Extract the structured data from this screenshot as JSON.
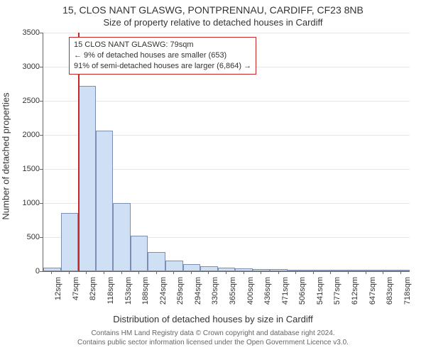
{
  "header": {
    "title_line1": "15, CLOS NANT GLASWG, PONTPRENNAU, CARDIFF, CF23 8NB",
    "title_line2": "Size of property relative to detached houses in Cardiff"
  },
  "axes": {
    "ylabel": "Number of detached properties",
    "xlabel": "Distribution of detached houses by size in Cardiff",
    "ylim": [
      0,
      3500
    ],
    "ytick_step": 500,
    "ytick_labels": [
      "0",
      "500",
      "1000",
      "1500",
      "2000",
      "2500",
      "3000",
      "3500"
    ],
    "label_fontsize": 13,
    "tick_fontsize": 11
  },
  "chart": {
    "type": "histogram",
    "background_color": "#ffffff",
    "grid_color": "#e6e6e6",
    "axis_color": "#666666",
    "bar_fill": "#cfe0f5",
    "bar_border": "#7a8fb3",
    "bar_width_ratio": 1.0,
    "bins": [
      {
        "label": "12sqm",
        "value": 55
      },
      {
        "label": "47sqm",
        "value": 850
      },
      {
        "label": "82sqm",
        "value": 2720
      },
      {
        "label": "118sqm",
        "value": 2060
      },
      {
        "label": "153sqm",
        "value": 1000
      },
      {
        "label": "188sqm",
        "value": 520
      },
      {
        "label": "224sqm",
        "value": 280
      },
      {
        "label": "259sqm",
        "value": 160
      },
      {
        "label": "294sqm",
        "value": 100
      },
      {
        "label": "330sqm",
        "value": 70
      },
      {
        "label": "365sqm",
        "value": 55
      },
      {
        "label": "400sqm",
        "value": 40
      },
      {
        "label": "436sqm",
        "value": 35
      },
      {
        "label": "471sqm",
        "value": 32
      },
      {
        "label": "506sqm",
        "value": 10
      },
      {
        "label": "541sqm",
        "value": 8
      },
      {
        "label": "577sqm",
        "value": 6
      },
      {
        "label": "612sqm",
        "value": 5
      },
      {
        "label": "647sqm",
        "value": 4
      },
      {
        "label": "683sqm",
        "value": 3
      },
      {
        "label": "718sqm",
        "value": 3
      }
    ]
  },
  "marker": {
    "position_ratio": 0.095,
    "color": "#c62828"
  },
  "callout": {
    "line1": "15 CLOS NANT GLASWG: 79sqm",
    "line2": "← 9% of detached houses are smaller (653)",
    "line3": "91% of semi-detached houses are larger (6,864) →",
    "border_color": "#c62828",
    "background_color": "#ffffff",
    "fontsize": 11
  },
  "footer": {
    "line1": "Contains HM Land Registry data © Crown copyright and database right 2024.",
    "line2": "Contains public sector information licensed under the Open Government Licence v3.0.",
    "fontsize": 10,
    "color": "#666666"
  }
}
